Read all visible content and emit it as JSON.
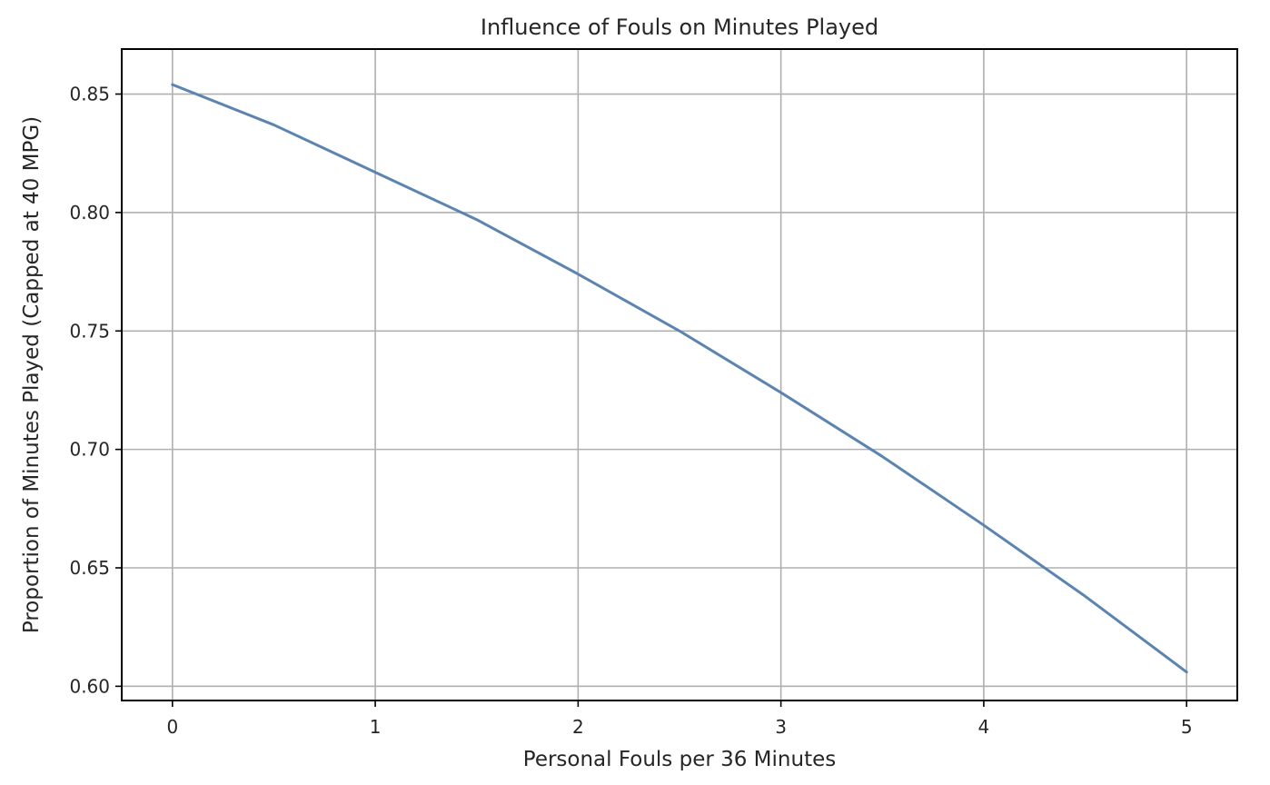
{
  "chart_data": {
    "type": "line",
    "title": "Influence of Fouls on Minutes Played",
    "xlabel": "Personal Fouls per 36 Minutes",
    "ylabel": "Proportion of Minutes Played (Capped at 40 MPG)",
    "xlim": [
      -0.25,
      5.25
    ],
    "ylim": [
      0.594,
      0.869
    ],
    "xticks": [
      0,
      1,
      2,
      3,
      4,
      5
    ],
    "xtick_labels": [
      "0",
      "1",
      "2",
      "3",
      "4",
      "5"
    ],
    "yticks": [
      0.6,
      0.65,
      0.7,
      0.75,
      0.8,
      0.85
    ],
    "ytick_labels": [
      "0.60",
      "0.65",
      "0.70",
      "0.75",
      "0.80",
      "0.85"
    ],
    "grid": true,
    "legend": "none",
    "series": [
      {
        "color": "#5b84b1",
        "x": [
          0,
          0.5,
          1,
          1.5,
          2,
          2.5,
          3,
          3.5,
          4,
          4.5,
          5
        ],
        "y": [
          0.854,
          0.837,
          0.817,
          0.797,
          0.774,
          0.75,
          0.724,
          0.697,
          0.668,
          0.638,
          0.606
        ]
      }
    ]
  }
}
